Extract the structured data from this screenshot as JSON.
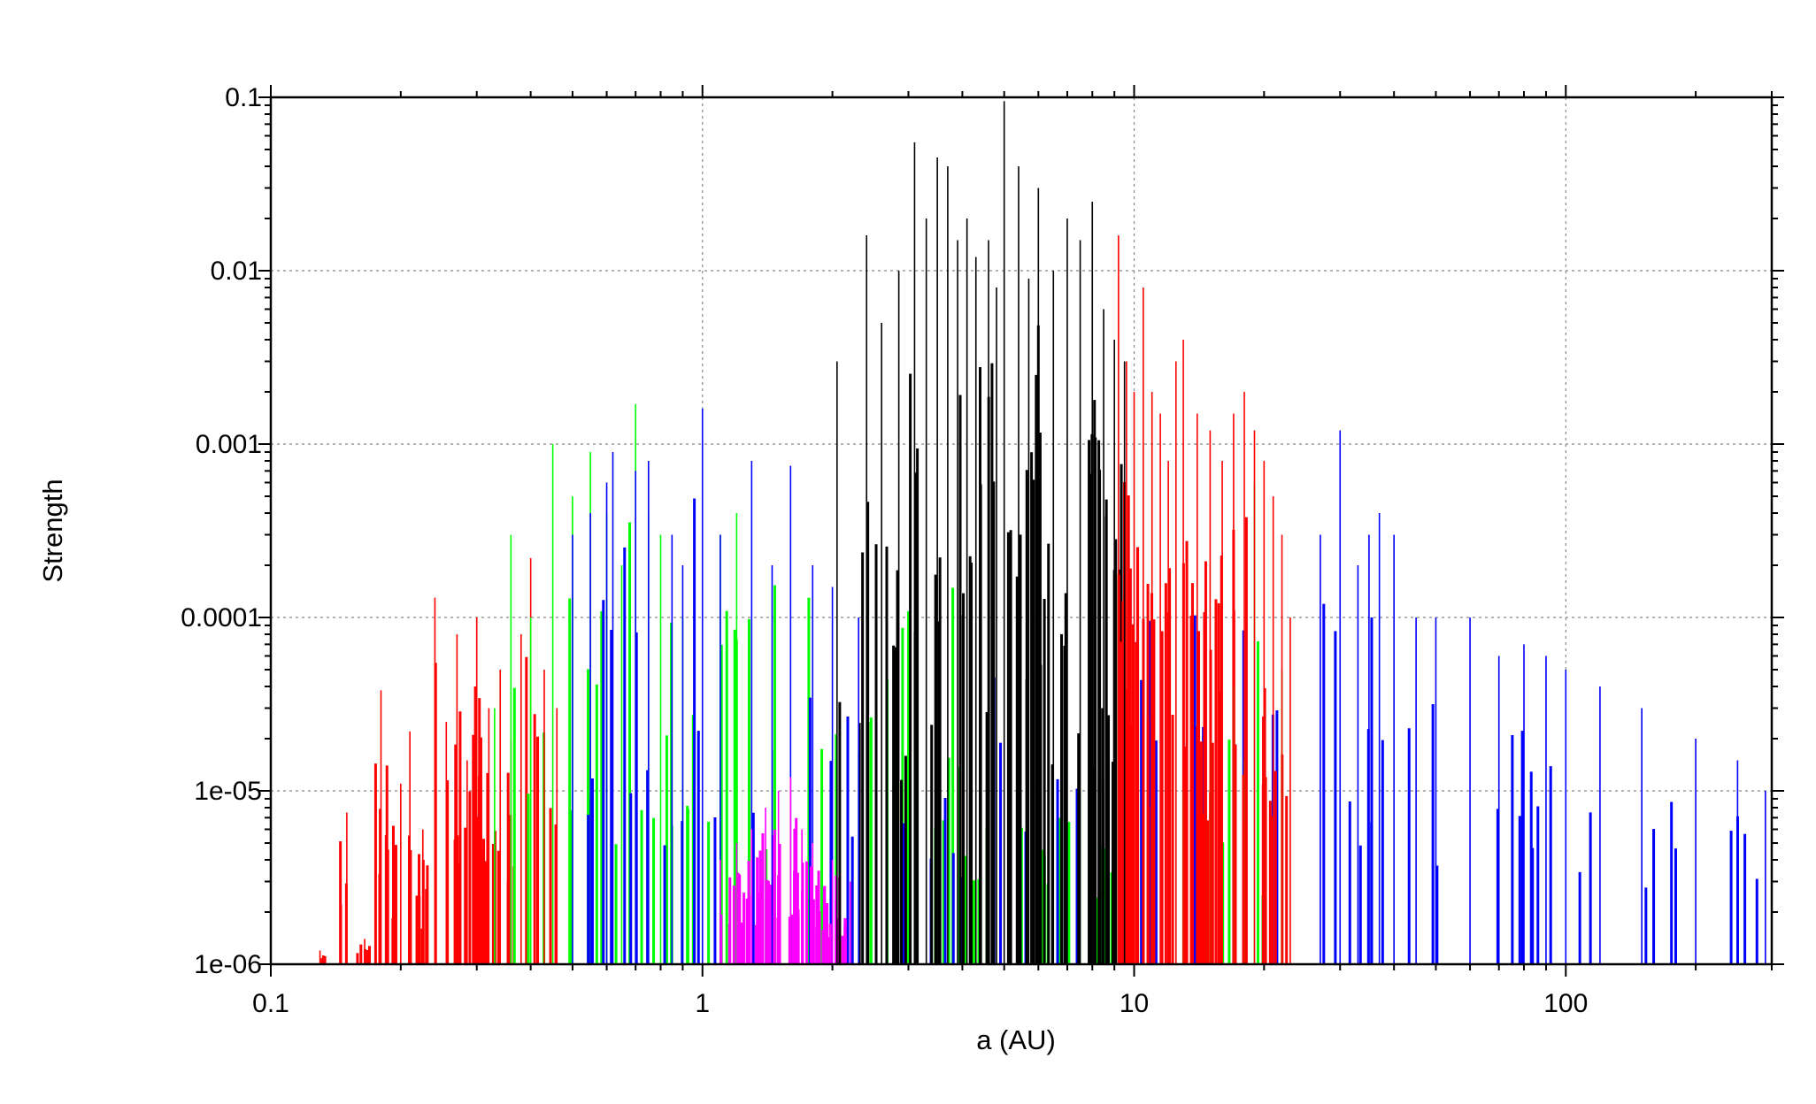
{
  "chart_data": {
    "type": "bar",
    "xlabel": "a (AU)",
    "ylabel": "Strength",
    "xscale": "log",
    "yscale": "log",
    "xlim": [
      0.1,
      300
    ],
    "ylim": [
      1e-06,
      0.1
    ],
    "grid": true,
    "x_ticks": [
      {
        "value": 0.1,
        "label": "0.1"
      },
      {
        "value": 1,
        "label": "1"
      },
      {
        "value": 10,
        "label": "10"
      },
      {
        "value": 100,
        "label": "100"
      }
    ],
    "y_ticks": [
      {
        "value": 1e-06,
        "label": "1e-06"
      },
      {
        "value": 1e-05,
        "label": "1e-05"
      },
      {
        "value": 0.0001,
        "label": "0.0001"
      },
      {
        "value": 0.001,
        "label": "0.001"
      },
      {
        "value": 0.01,
        "label": "0.01"
      },
      {
        "value": 0.1,
        "label": "0.1"
      }
    ],
    "series": [
      {
        "color": "#ff0000",
        "x": [
          0.13,
          0.15,
          0.165,
          0.18,
          0.2,
          0.21,
          0.225,
          0.24,
          0.255,
          0.27,
          0.285,
          0.3,
          0.32,
          0.34,
          0.36,
          0.38,
          0.4,
          0.43,
          0.46
        ],
        "y": [
          1.2e-06,
          7.5e-06,
          1.4e-06,
          3.8e-05,
          1.1e-05,
          2.2e-05,
          6e-06,
          0.00013,
          2.5e-05,
          8e-05,
          1.5e-05,
          0.0001,
          3e-05,
          5e-05,
          2e-05,
          8e-05,
          0.00022,
          5e-05,
          3e-05
        ]
      },
      {
        "color": "#00ff00",
        "x": [
          0.33,
          0.36,
          0.4,
          0.45,
          0.5,
          0.55,
          0.6,
          0.65,
          0.7,
          0.75,
          0.8,
          0.9,
          1.1,
          1.2,
          13,
          15,
          17,
          18,
          19,
          20,
          22
        ],
        "y": [
          3e-05,
          0.0003,
          0.0001,
          0.001,
          0.0005,
          0.0009,
          0.0004,
          0.0002,
          0.0017,
          0.0004,
          0.0003,
          0.0001,
          0.0003,
          0.0004,
          1e-05,
          2e-05,
          4e-05,
          1.5e-05,
          0.0006,
          3e-05,
          5e-05
        ]
      },
      {
        "color": "#0000ff",
        "x": [
          0.5,
          0.55,
          0.6,
          0.62,
          0.7,
          0.75,
          0.85,
          0.9,
          1.0,
          1.1,
          1.3,
          1.45,
          1.6,
          1.8,
          2.0,
          2.3,
          27,
          30,
          33,
          35,
          37,
          40,
          45,
          50,
          60,
          70,
          80,
          90,
          100,
          120,
          150,
          200,
          250,
          290
        ],
        "y": [
          0.0003,
          0.0004,
          0.0006,
          0.0009,
          0.0007,
          0.0008,
          0.0003,
          0.0002,
          0.0016,
          0.0003,
          0.0008,
          0.0002,
          0.00075,
          0.0002,
          0.00015,
          0.0001,
          0.0003,
          0.0012,
          0.0002,
          0.0003,
          0.0004,
          0.0003,
          0.0001,
          0.0001,
          0.0001,
          6e-05,
          7e-05,
          6e-05,
          5e-05,
          4e-05,
          3e-05,
          2e-05,
          1.5e-05,
          1e-05
        ]
      },
      {
        "color": "#ff00ff",
        "x": [
          1.1,
          1.2,
          1.3,
          1.4,
          1.5,
          1.6,
          1.7,
          1.8,
          2.0,
          2.2
        ],
        "y": [
          4e-06,
          5e-06,
          6e-06,
          8e-06,
          1e-05,
          1.2e-05,
          6e-06,
          5e-06,
          4e-06,
          3e-06
        ]
      },
      {
        "color": "#000000",
        "x": [
          2.05,
          2.4,
          2.6,
          2.85,
          3.1,
          3.3,
          3.5,
          3.7,
          3.9,
          4.1,
          4.3,
          4.6,
          4.8,
          5.0,
          5.4,
          5.7,
          6.0,
          6.5,
          7.0,
          7.5,
          8.0,
          8.5,
          9.0,
          9.5
        ],
        "y": [
          0.003,
          0.016,
          0.005,
          0.01,
          0.055,
          0.02,
          0.045,
          0.04,
          0.015,
          0.02,
          0.012,
          0.015,
          0.008,
          0.095,
          0.04,
          0.009,
          0.03,
          0.01,
          0.02,
          0.015,
          0.025,
          0.006,
          0.004,
          0.003
        ]
      },
      {
        "color": "#ff0000",
        "x": [
          9.2,
          9.6,
          10.0,
          10.5,
          11.0,
          11.5,
          12.0,
          12.5,
          13.0,
          14.0,
          15.0,
          16.0,
          17.0,
          18.0,
          19.0,
          20.0,
          21.0,
          22.0,
          23.0
        ],
        "y": [
          0.016,
          0.003,
          0.002,
          0.008,
          0.002,
          0.0015,
          0.0008,
          0.003,
          0.004,
          0.0015,
          0.0012,
          0.0008,
          0.0015,
          0.002,
          0.0012,
          0.0008,
          0.0005,
          0.0003,
          0.0001
        ]
      }
    ]
  }
}
